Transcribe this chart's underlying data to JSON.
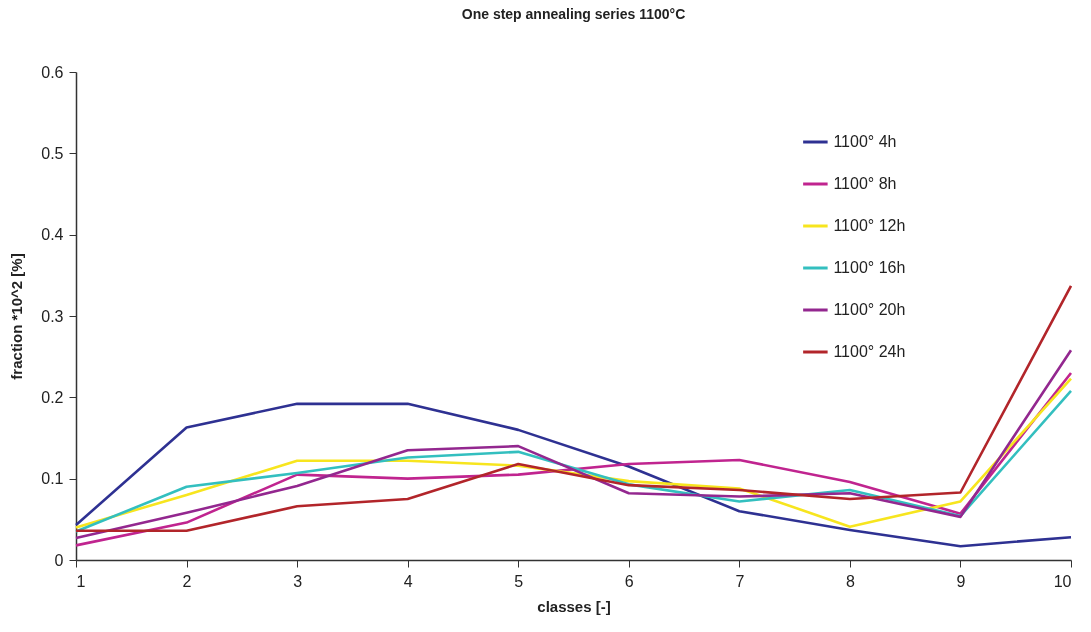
{
  "chart_data": {
    "type": "line",
    "title": "One step annealing series 1100°C",
    "xlabel": "classes [-]",
    "ylabel": "fraction *10^2 [%]",
    "x": [
      1,
      2,
      3,
      4,
      5,
      6,
      7,
      8,
      9,
      10
    ],
    "xlim": [
      1,
      10
    ],
    "xticks": [
      1,
      2,
      3,
      4,
      5,
      6,
      7,
      8,
      9,
      10
    ],
    "ylim": [
      0,
      0.6
    ],
    "yticks": [
      0,
      0.1,
      0.2,
      0.3,
      0.4,
      0.5,
      0.6
    ],
    "legend": "top right",
    "marker": "none",
    "series": [
      {
        "name": "1100° 4h",
        "color": "#2e3192",
        "values": [
          0.043,
          0.163,
          0.192,
          0.192,
          0.16,
          0.115,
          0.06,
          0.037,
          0.017,
          0.028
        ]
      },
      {
        "name": "1100° 8h",
        "color": "#c0248f",
        "values": [
          0.018,
          0.046,
          0.105,
          0.1,
          0.105,
          0.118,
          0.123,
          0.096,
          0.057,
          0.23
        ]
      },
      {
        "name": "1100° 12h",
        "color": "#f7e51e",
        "values": [
          0.04,
          0.08,
          0.122,
          0.122,
          0.116,
          0.097,
          0.088,
          0.041,
          0.072,
          0.223
        ]
      },
      {
        "name": "1100° 16h",
        "color": "#33bfbf",
        "values": [
          0.035,
          0.09,
          0.107,
          0.126,
          0.133,
          0.093,
          0.072,
          0.086,
          0.054,
          0.208
        ]
      },
      {
        "name": "1100° 20h",
        "color": "#93278f",
        "values": [
          0.027,
          0.058,
          0.091,
          0.135,
          0.14,
          0.082,
          0.078,
          0.082,
          0.053,
          0.258
        ]
      },
      {
        "name": "1100° 24h",
        "color": "#b2252a",
        "values": [
          0.036,
          0.036,
          0.066,
          0.075,
          0.118,
          0.092,
          0.086,
          0.075,
          0.083,
          0.337
        ]
      }
    ]
  }
}
